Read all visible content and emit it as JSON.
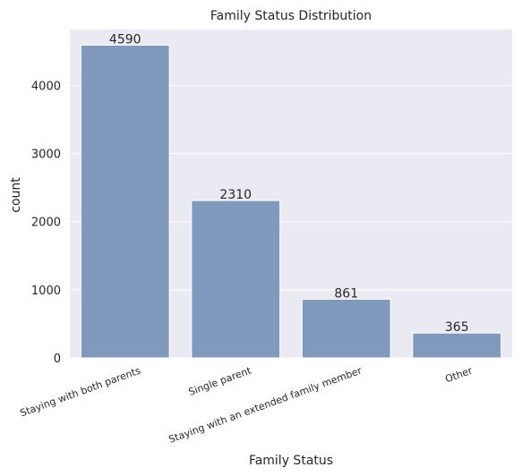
{
  "chart_data": {
    "type": "bar",
    "title": "Family Status Distribution",
    "xlabel": "Family Status",
    "ylabel": "count",
    "categories": [
      "Staying with both parents",
      "Single parent",
      "Staying with an extended family member",
      "Other"
    ],
    "values": [
      4590,
      2310,
      861,
      365
    ],
    "data_labels": [
      "4590",
      "2310",
      "861",
      "365"
    ],
    "yticks": [
      0,
      1000,
      2000,
      3000,
      4000
    ],
    "ytick_labels": [
      "0",
      "1000",
      "2000",
      "3000",
      "4000"
    ],
    "ylim": [
      0,
      4819.5
    ],
    "grid": true,
    "bar_color": "#8199bd",
    "plot_background": "#eaeaf2",
    "grid_color": "#ffffff"
  }
}
